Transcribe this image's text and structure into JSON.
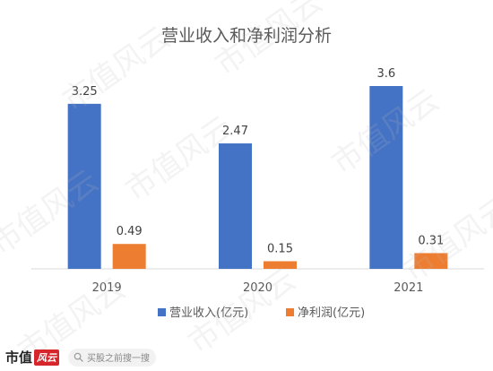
{
  "chart_data": {
    "type": "bar",
    "title": "营业收入和净利润分析",
    "categories": [
      "2019",
      "2020",
      "2021"
    ],
    "series": [
      {
        "name": "营业收入(亿元)",
        "values": [
          3.25,
          2.47,
          3.6
        ],
        "labels": [
          "3.25",
          "2.47",
          "3.6"
        ],
        "color": "#4472C4"
      },
      {
        "name": "净利润(亿元)",
        "values": [
          0.49,
          0.15,
          0.31
        ],
        "labels": [
          "0.49",
          "0.15",
          "0.31"
        ],
        "color": "#ED7D31"
      }
    ],
    "ylim": [
      0,
      3.6
    ],
    "grid": false,
    "legend": "bottom"
  },
  "watermark": "市值风云",
  "footer": {
    "logo_text": "市值",
    "logo_seal": "风云",
    "search_placeholder": "买股之前搜一搜",
    "search_icon": "search-icon"
  }
}
